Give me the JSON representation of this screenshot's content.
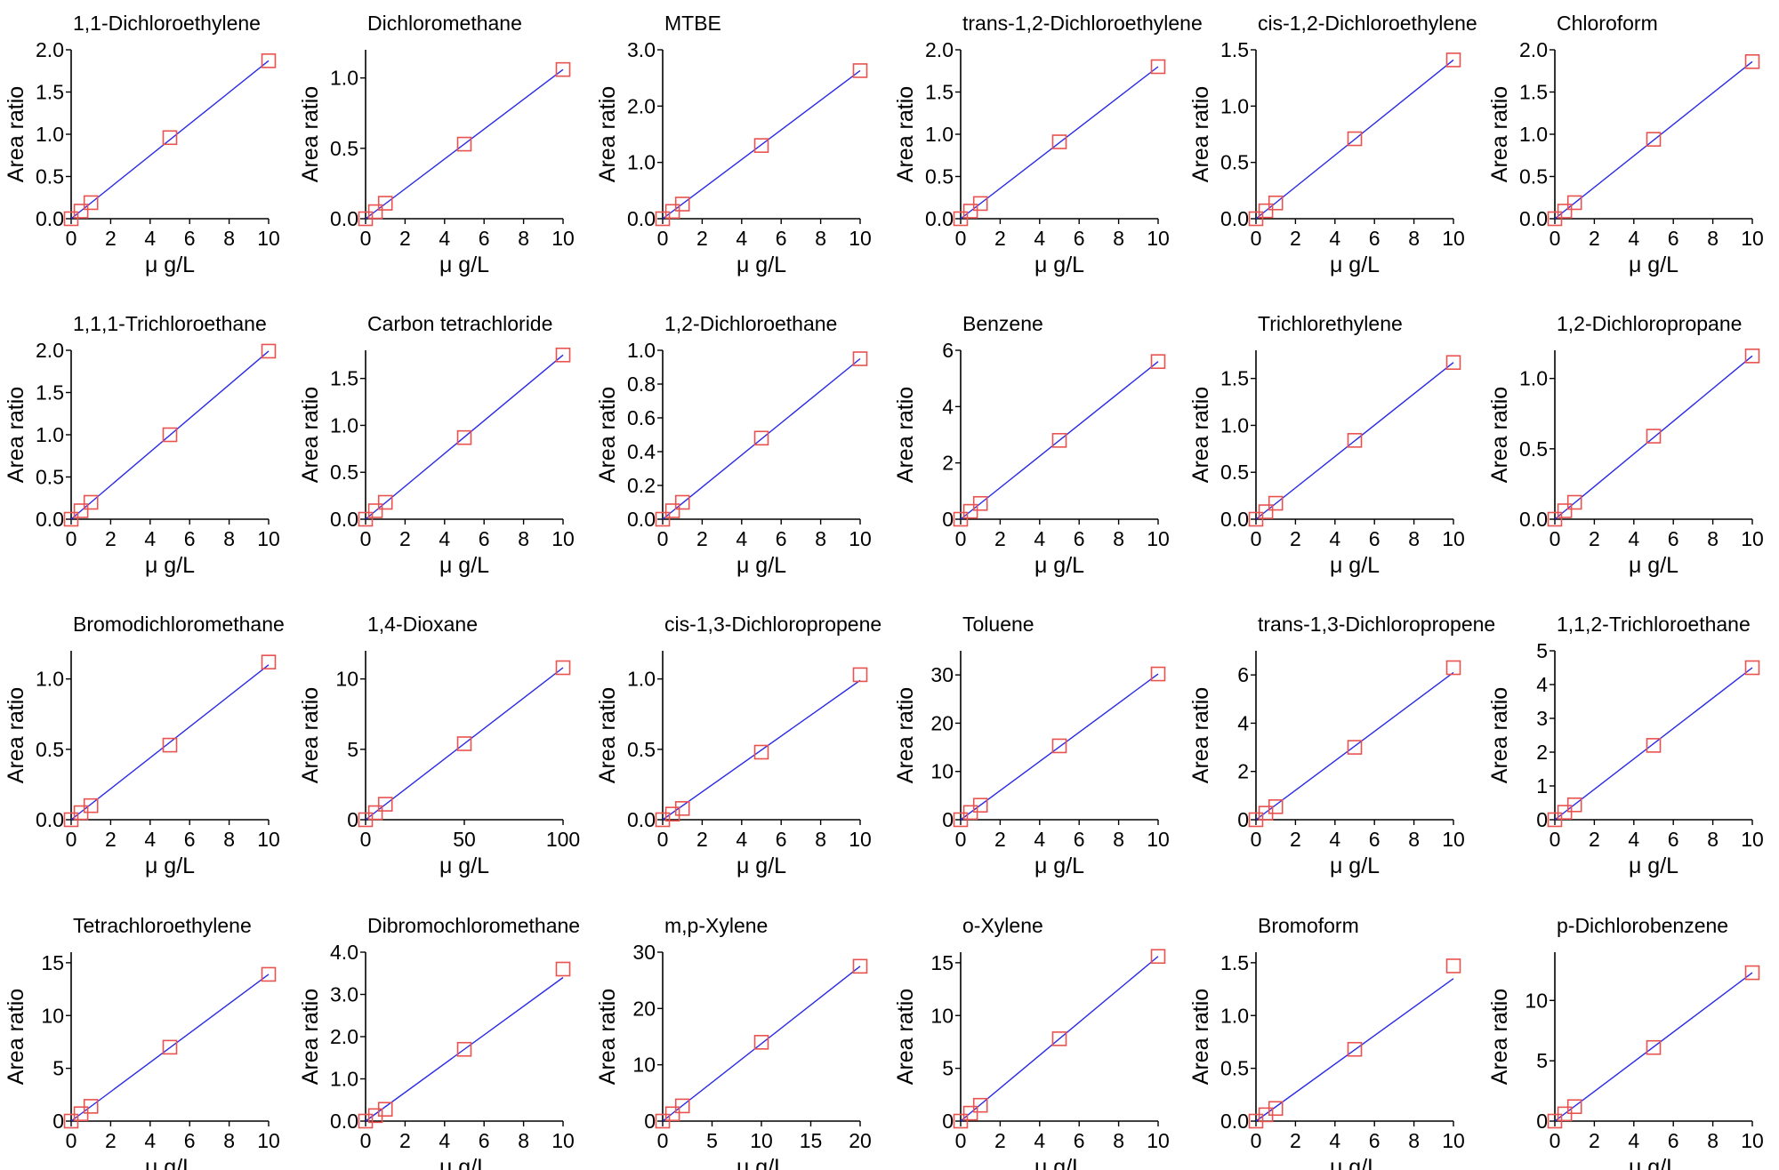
{
  "colors": {
    "fit_line": "#2a2ae6",
    "marker": "#e8524f",
    "axis": "#000000"
  },
  "chart_data": [
    {
      "type": "scatter",
      "title": "1,1-Dichloroethylene",
      "xlabel": "μ g/L",
      "ylabel": "Area ratio",
      "xlim": [
        0,
        10
      ],
      "ylim": [
        0,
        2.0
      ],
      "xticks": [
        0,
        2,
        4,
        6,
        8,
        10
      ],
      "yticks": [
        0.0,
        0.5,
        1.0,
        1.5,
        2.0
      ],
      "ydec": 1,
      "x": [
        0,
        0.5,
        1,
        5,
        10
      ],
      "y": [
        0,
        0.09,
        0.19,
        0.96,
        1.87
      ],
      "fit": [
        [
          0,
          0
        ],
        [
          10,
          1.87
        ]
      ]
    },
    {
      "type": "scatter",
      "title": "Dichloromethane",
      "xlabel": "μ g/L",
      "ylabel": "Area ratio",
      "xlim": [
        0,
        10
      ],
      "ylim": [
        0,
        1.2
      ],
      "xticks": [
        0,
        2,
        4,
        6,
        8,
        10
      ],
      "yticks": [
        0.0,
        0.5,
        1.0
      ],
      "ydec": 1,
      "x": [
        0,
        0.5,
        1,
        5,
        10
      ],
      "y": [
        0,
        0.05,
        0.11,
        0.53,
        1.06
      ],
      "fit": [
        [
          0,
          0
        ],
        [
          10,
          1.06
        ]
      ]
    },
    {
      "type": "scatter",
      "title": "MTBE",
      "xlabel": "μ g/L",
      "ylabel": "Area ratio",
      "xlim": [
        0,
        10
      ],
      "ylim": [
        0,
        3.0
      ],
      "xticks": [
        0,
        2,
        4,
        6,
        8,
        10
      ],
      "yticks": [
        0.0,
        1.0,
        2.0,
        3.0
      ],
      "ydec": 1,
      "x": [
        0,
        0.5,
        1,
        5,
        10
      ],
      "y": [
        0,
        0.13,
        0.26,
        1.3,
        2.63
      ],
      "fit": [
        [
          0,
          0
        ],
        [
          10,
          2.63
        ]
      ]
    },
    {
      "type": "scatter",
      "title": "trans-1,2-Dichloroethylene",
      "xlabel": "μ g/L",
      "ylabel": "Area ratio",
      "xlim": [
        0,
        10
      ],
      "ylim": [
        0,
        2.0
      ],
      "xticks": [
        0,
        2,
        4,
        6,
        8,
        10
      ],
      "yticks": [
        0.0,
        0.5,
        1.0,
        1.5,
        2.0
      ],
      "ydec": 1,
      "x": [
        0,
        0.5,
        1,
        5,
        10
      ],
      "y": [
        0,
        0.09,
        0.18,
        0.91,
        1.8
      ],
      "fit": [
        [
          0,
          0
        ],
        [
          10,
          1.8
        ]
      ]
    },
    {
      "type": "scatter",
      "title": "cis-1,2-Dichloroethylene",
      "xlabel": "μ g/L",
      "ylabel": "Area ratio",
      "xlim": [
        0,
        10
      ],
      "ylim": [
        0,
        1.5
      ],
      "xticks": [
        0,
        2,
        4,
        6,
        8,
        10
      ],
      "yticks": [
        0.0,
        0.5,
        1.0,
        1.5
      ],
      "ydec": 1,
      "x": [
        0,
        0.5,
        1,
        5,
        10
      ],
      "y": [
        0,
        0.07,
        0.14,
        0.71,
        1.41
      ],
      "fit": [
        [
          0,
          0
        ],
        [
          10,
          1.41
        ]
      ]
    },
    {
      "type": "scatter",
      "title": "Chloroform",
      "xlabel": "μ g/L",
      "ylabel": "Area ratio",
      "xlim": [
        0,
        10
      ],
      "ylim": [
        0,
        2.0
      ],
      "xticks": [
        0,
        2,
        4,
        6,
        8,
        10
      ],
      "yticks": [
        0.0,
        0.5,
        1.0,
        1.5,
        2.0
      ],
      "ydec": 1,
      "x": [
        0,
        0.5,
        1,
        5,
        10
      ],
      "y": [
        0,
        0.09,
        0.19,
        0.94,
        1.86
      ],
      "fit": [
        [
          0,
          0
        ],
        [
          10,
          1.86
        ]
      ]
    },
    {
      "type": "scatter",
      "title": "1,1,1-Trichloroethane",
      "xlabel": "μ g/L",
      "ylabel": "Area ratio",
      "xlim": [
        0,
        10
      ],
      "ylim": [
        0,
        2.0
      ],
      "xticks": [
        0,
        2,
        4,
        6,
        8,
        10
      ],
      "yticks": [
        0.0,
        0.5,
        1.0,
        1.5,
        2.0
      ],
      "ydec": 1,
      "x": [
        0,
        0.5,
        1,
        5,
        10
      ],
      "y": [
        0,
        0.1,
        0.2,
        1.0,
        1.99
      ],
      "fit": [
        [
          0,
          0
        ],
        [
          10,
          1.99
        ]
      ]
    },
    {
      "type": "scatter",
      "title": "Carbon tetrachloride",
      "xlabel": "μ g/L",
      "ylabel": "Area ratio",
      "xlim": [
        0,
        10
      ],
      "ylim": [
        0,
        1.8
      ],
      "xticks": [
        0,
        2,
        4,
        6,
        8,
        10
      ],
      "yticks": [
        0.0,
        0.5,
        1.0,
        1.5
      ],
      "ydec": 1,
      "x": [
        0,
        0.5,
        1,
        5,
        10
      ],
      "y": [
        0,
        0.09,
        0.18,
        0.87,
        1.75
      ],
      "fit": [
        [
          0,
          0
        ],
        [
          10,
          1.75
        ]
      ]
    },
    {
      "type": "scatter",
      "title": "1,2-Dichloroethane",
      "xlabel": "μ g/L",
      "ylabel": "Area ratio",
      "xlim": [
        0,
        10
      ],
      "ylim": [
        0,
        1.0
      ],
      "xticks": [
        0,
        2,
        4,
        6,
        8,
        10
      ],
      "yticks": [
        0.0,
        0.2,
        0.4,
        0.6,
        0.8,
        1.0
      ],
      "ydec": 1,
      "x": [
        0,
        0.5,
        1,
        5,
        10
      ],
      "y": [
        0,
        0.05,
        0.1,
        0.48,
        0.95
      ],
      "fit": [
        [
          0,
          0
        ],
        [
          10,
          0.95
        ]
      ]
    },
    {
      "type": "scatter",
      "title": "Benzene",
      "xlabel": "μ g/L",
      "ylabel": "Area ratio",
      "xlim": [
        0,
        10
      ],
      "ylim": [
        0,
        6
      ],
      "xticks": [
        0,
        2,
        4,
        6,
        8,
        10
      ],
      "yticks": [
        0,
        2,
        4,
        6
      ],
      "ydec": 0,
      "x": [
        0,
        0.5,
        1,
        5,
        10
      ],
      "y": [
        0,
        0.28,
        0.56,
        2.8,
        5.6
      ],
      "fit": [
        [
          0,
          0
        ],
        [
          10,
          5.6
        ]
      ]
    },
    {
      "type": "scatter",
      "title": "Trichlorethylene",
      "xlabel": "μ g/L",
      "ylabel": "Area ratio",
      "xlim": [
        0,
        10
      ],
      "ylim": [
        0,
        1.8
      ],
      "xticks": [
        0,
        2,
        4,
        6,
        8,
        10
      ],
      "yticks": [
        0.0,
        0.5,
        1.0,
        1.5
      ],
      "ydec": 1,
      "x": [
        0,
        0.5,
        1,
        5,
        10
      ],
      "y": [
        0,
        0.08,
        0.17,
        0.84,
        1.67
      ],
      "fit": [
        [
          0,
          0
        ],
        [
          10,
          1.67
        ]
      ]
    },
    {
      "type": "scatter",
      "title": "1,2-Dichloropropane",
      "xlabel": "μ g/L",
      "ylabel": "Area ratio",
      "xlim": [
        0,
        10
      ],
      "ylim": [
        0,
        1.2
      ],
      "xticks": [
        0,
        2,
        4,
        6,
        8,
        10
      ],
      "yticks": [
        0.0,
        0.5,
        1.0
      ],
      "ydec": 1,
      "x": [
        0,
        0.5,
        1,
        5,
        10
      ],
      "y": [
        0,
        0.06,
        0.12,
        0.59,
        1.16
      ],
      "fit": [
        [
          0,
          0
        ],
        [
          10,
          1.16
        ]
      ]
    },
    {
      "type": "scatter",
      "title": "Bromodichloromethane",
      "xlabel": "μ g/L",
      "ylabel": "Area ratio",
      "xlim": [
        0,
        10
      ],
      "ylim": [
        0,
        1.2
      ],
      "xticks": [
        0,
        2,
        4,
        6,
        8,
        10
      ],
      "yticks": [
        0.0,
        0.5,
        1.0
      ],
      "ydec": 1,
      "x": [
        0,
        0.5,
        1,
        5,
        10
      ],
      "y": [
        0,
        0.05,
        0.1,
        0.53,
        1.12
      ],
      "fit": [
        [
          0,
          0
        ],
        [
          10,
          1.1
        ]
      ]
    },
    {
      "type": "scatter",
      "title": "1,4-Dioxane",
      "xlabel": "μ g/L",
      "ylabel": "Area ratio",
      "xlim": [
        0,
        100
      ],
      "ylim": [
        0,
        12
      ],
      "xticks": [
        0,
        50,
        100
      ],
      "yticks": [
        0,
        5,
        10
      ],
      "ydec": 0,
      "x": [
        0,
        5,
        10,
        50,
        100
      ],
      "y": [
        0,
        0.5,
        1.1,
        5.4,
        10.8
      ],
      "fit": [
        [
          0,
          0
        ],
        [
          100,
          10.8
        ]
      ]
    },
    {
      "type": "scatter",
      "title": "cis-1,3-Dichloropropene",
      "xlabel": "μ g/L",
      "ylabel": "Area ratio",
      "xlim": [
        0,
        10
      ],
      "ylim": [
        0,
        1.2
      ],
      "xticks": [
        0,
        2,
        4,
        6,
        8,
        10
      ],
      "yticks": [
        0.0,
        0.5,
        1.0
      ],
      "ydec": 1,
      "x": [
        0,
        0.5,
        1,
        5,
        10
      ],
      "y": [
        0,
        0.04,
        0.08,
        0.48,
        1.03
      ],
      "fit": [
        [
          0,
          0
        ],
        [
          10,
          0.99
        ]
      ]
    },
    {
      "type": "scatter",
      "title": "Toluene",
      "xlabel": "μ g/L",
      "ylabel": "Area ratio",
      "xlim": [
        0,
        10
      ],
      "ylim": [
        0,
        35
      ],
      "xticks": [
        0,
        2,
        4,
        6,
        8,
        10
      ],
      "yticks": [
        0,
        10,
        20,
        30
      ],
      "ydec": 0,
      "x": [
        0,
        0.5,
        1,
        5,
        10
      ],
      "y": [
        0,
        1.5,
        3,
        15.3,
        30.2
      ],
      "fit": [
        [
          0,
          0
        ],
        [
          10,
          30.2
        ]
      ]
    },
    {
      "type": "scatter",
      "title": "trans-1,3-Dichloropropene",
      "xlabel": "μ g/L",
      "ylabel": "Area ratio",
      "xlim": [
        0,
        10
      ],
      "ylim": [
        0,
        7
      ],
      "xticks": [
        0,
        2,
        4,
        6,
        8,
        10
      ],
      "yticks": [
        0,
        2,
        4,
        6
      ],
      "ydec": 0,
      "x": [
        0,
        0.5,
        1,
        5,
        10
      ],
      "y": [
        0,
        0.27,
        0.54,
        3.0,
        6.3
      ],
      "fit": [
        [
          0,
          0
        ],
        [
          10,
          6.1
        ]
      ]
    },
    {
      "type": "scatter",
      "title": "1,1,2-Trichloroethane",
      "xlabel": "μ g/L",
      "ylabel": "Area ratio",
      "xlim": [
        0,
        10
      ],
      "ylim": [
        0,
        5
      ],
      "xticks": [
        0,
        2,
        4,
        6,
        8,
        10
      ],
      "yticks": [
        0,
        1,
        2,
        3,
        4,
        5
      ],
      "ydec": 0,
      "x": [
        0,
        0.5,
        1,
        5,
        10
      ],
      "y": [
        0,
        0.22,
        0.44,
        2.2,
        4.5
      ],
      "fit": [
        [
          0,
          0
        ],
        [
          10,
          4.5
        ]
      ]
    },
    {
      "type": "scatter",
      "title": "Tetrachloroethylene",
      "xlabel": "μ g/L",
      "ylabel": "Area ratio",
      "xlim": [
        0,
        10
      ],
      "ylim": [
        0,
        16
      ],
      "xticks": [
        0,
        2,
        4,
        6,
        8,
        10
      ],
      "yticks": [
        0,
        5,
        10,
        15
      ],
      "ydec": 0,
      "x": [
        0,
        0.5,
        1,
        5,
        10
      ],
      "y": [
        0,
        0.7,
        1.4,
        7.0,
        13.9
      ],
      "fit": [
        [
          0,
          0
        ],
        [
          10,
          13.9
        ]
      ]
    },
    {
      "type": "scatter",
      "title": "Dibromochloromethane",
      "xlabel": "μ g/L",
      "ylabel": "Area ratio",
      "xlim": [
        0,
        10
      ],
      "ylim": [
        0,
        4.0
      ],
      "xticks": [
        0,
        2,
        4,
        6,
        8,
        10
      ],
      "yticks": [
        0.0,
        1.0,
        2.0,
        3.0,
        4.0
      ],
      "ydec": 1,
      "x": [
        0,
        0.5,
        1,
        5,
        10
      ],
      "y": [
        0,
        0.13,
        0.28,
        1.7,
        3.6
      ],
      "fit": [
        [
          0,
          0
        ],
        [
          10,
          3.4
        ]
      ]
    },
    {
      "type": "scatter",
      "title": "m,p-Xylene",
      "xlabel": "μ g/L",
      "ylabel": "Area ratio",
      "xlim": [
        0,
        20
      ],
      "ylim": [
        0,
        30
      ],
      "xticks": [
        0,
        5,
        10,
        15,
        20
      ],
      "yticks": [
        0,
        10,
        20,
        30
      ],
      "ydec": 0,
      "x": [
        0,
        1,
        2,
        10,
        20
      ],
      "y": [
        0,
        1.3,
        2.7,
        14.0,
        27.5
      ],
      "fit": [
        [
          0,
          0
        ],
        [
          20,
          27.5
        ]
      ]
    },
    {
      "type": "scatter",
      "title": "o-Xylene",
      "xlabel": "μ g/L",
      "ylabel": "Area ratio",
      "xlim": [
        0,
        10
      ],
      "ylim": [
        0,
        16
      ],
      "xticks": [
        0,
        2,
        4,
        6,
        8,
        10
      ],
      "yticks": [
        0,
        5,
        10,
        15
      ],
      "ydec": 0,
      "x": [
        0,
        0.5,
        1,
        5,
        10
      ],
      "y": [
        0,
        0.75,
        1.5,
        7.8,
        15.6
      ],
      "fit": [
        [
          0,
          0
        ],
        [
          10,
          15.6
        ]
      ]
    },
    {
      "type": "scatter",
      "title": "Bromoform",
      "xlabel": "μ g/L",
      "ylabel": "Area ratio",
      "xlim": [
        0,
        10
      ],
      "ylim": [
        0,
        1.6
      ],
      "xticks": [
        0,
        2,
        4,
        6,
        8,
        10
      ],
      "yticks": [
        0.0,
        0.5,
        1.0,
        1.5
      ],
      "ydec": 1,
      "x": [
        0,
        0.5,
        1,
        5,
        10
      ],
      "y": [
        0,
        0.06,
        0.12,
        0.68,
        1.47
      ],
      "fit": [
        [
          0,
          0
        ],
        [
          10,
          1.35
        ]
      ]
    },
    {
      "type": "scatter",
      "title": "p-Dichlorobenzene",
      "xlabel": "μ g/L",
      "ylabel": "Area ratio",
      "xlim": [
        0,
        10
      ],
      "ylim": [
        0,
        14
      ],
      "xticks": [
        0,
        2,
        4,
        6,
        8,
        10
      ],
      "yticks": [
        0,
        5,
        10
      ],
      "ydec": 0,
      "x": [
        0,
        0.5,
        1,
        5,
        10
      ],
      "y": [
        0,
        0.6,
        1.2,
        6.1,
        12.3
      ],
      "fit": [
        [
          0,
          0
        ],
        [
          10,
          12.3
        ]
      ]
    }
  ]
}
